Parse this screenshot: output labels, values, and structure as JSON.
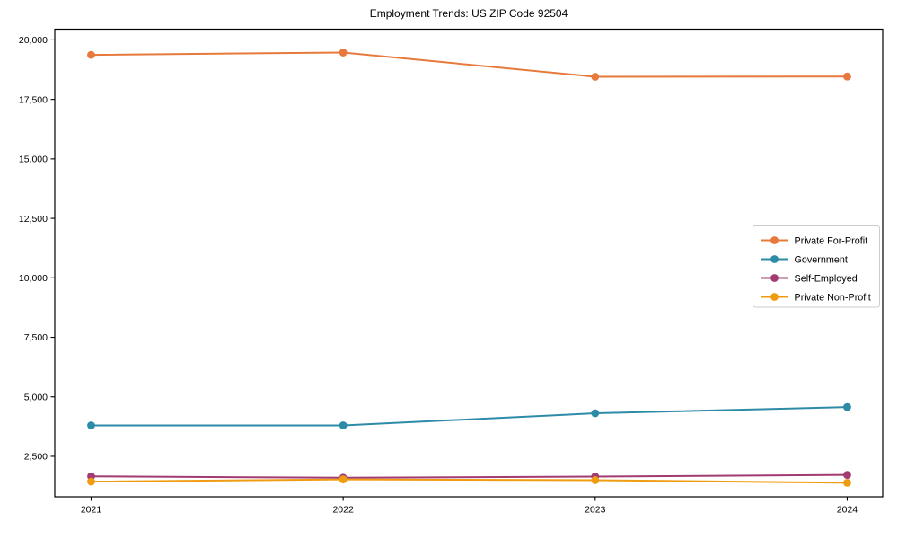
{
  "chart_data": {
    "type": "line",
    "title": "Employment Trends: US ZIP Code 92504",
    "x": [
      2021,
      2022,
      2023,
      2024
    ],
    "x_tick_labels": [
      "2021",
      "2022",
      "2023",
      "2024"
    ],
    "series": [
      {
        "name": "Private For-Profit",
        "color": "#E8793D",
        "values": [
          19370,
          19470,
          18450,
          18460
        ]
      },
      {
        "name": "Government",
        "color": "#2E8BA8",
        "values": [
          3800,
          3800,
          4310,
          4570
        ]
      },
      {
        "name": "Self-Employed",
        "color": "#A23B72",
        "values": [
          1660,
          1600,
          1650,
          1720
        ]
      },
      {
        "name": "Private Non-Profit",
        "color": "#F09C13",
        "values": [
          1440,
          1530,
          1500,
          1390
        ]
      }
    ],
    "y_axis": {
      "tick_values": [
        2500,
        5000,
        7500,
        10000,
        12500,
        15000,
        17500,
        20000
      ],
      "tick_labels": [
        "2,500",
        "5,000",
        "7,500",
        "10,000",
        "12,500",
        "15,000",
        "17,500",
        "20,000"
      ],
      "range": [
        800,
        20450
      ]
    },
    "legend": {
      "position": "center-right",
      "labels": [
        "Private For-Profit",
        "Government",
        "Self-Employed",
        "Private Non-Profit"
      ],
      "border_color": "#cccccc",
      "background": "#ffffff"
    },
    "grid": false,
    "axis_color": "#000000",
    "background": "#ffffff"
  }
}
